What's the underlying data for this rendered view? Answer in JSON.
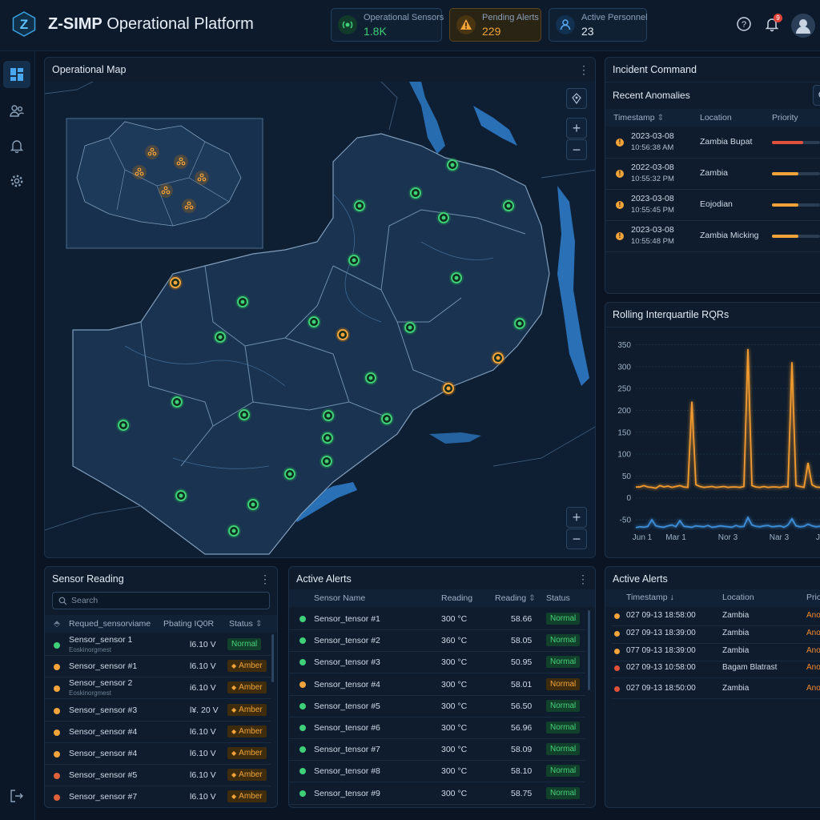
{
  "app": {
    "logo_letter": "Z",
    "title_bold": "Z-SIMP",
    "title_rest": " Operational Platform"
  },
  "header_stats": [
    {
      "label": "Operational Sensors",
      "value": "1.8K",
      "color": "#3ecf78",
      "icon": "sensor-signal-icon"
    },
    {
      "label": "Pending Alerts",
      "value": "229",
      "color": "#f2a43a",
      "icon": "warning-icon"
    },
    {
      "label": "Active Personnel",
      "value": "23",
      "color": "#5aa8f0",
      "icon": "person-icon"
    }
  ],
  "notifications": {
    "count": "9"
  },
  "map": {
    "title": "Operational Map"
  },
  "incident": {
    "title": "Incident Command",
    "subtitle": "Recent Anomalies",
    "columns": {
      "timestamp": "Timestamp",
      "location": "Location",
      "priority": "Priority"
    },
    "rows": [
      {
        "date": "2023-03-08",
        "time": "10:56:38 AM",
        "location": "Zambia Bupat",
        "priority": 0.65,
        "color": "#e0503a"
      },
      {
        "date": "2022-03-08",
        "time": "10:55:32 PM",
        "location": "Zambia",
        "priority": 0.55,
        "color": "#f2a43a"
      },
      {
        "date": "2023-03-08",
        "time": "10:55:45 PM",
        "location": "Eojodian",
        "priority": 0.55,
        "color": "#f2a43a"
      },
      {
        "date": "2023-03-08",
        "time": "10:55:48 PM",
        "location": "Zambia Micking",
        "priority": 0.55,
        "color": "#f2a43a"
      }
    ]
  },
  "chart": {
    "title": "Rolling Interquartile RQRs"
  },
  "chart_data": {
    "type": "line",
    "title": "Rolling Interquartile RQRs",
    "y_ticks": [
      350,
      300,
      250,
      200,
      150,
      100,
      50,
      0,
      -50
    ],
    "x_tick_labels": [
      "Jun 1",
      "Mar 1",
      "Nor 3",
      "Nar 3",
      "Jur"
    ],
    "ylim": [
      -70,
      360
    ],
    "grid": true,
    "series": [
      {
        "color": "#f29a2e",
        "values": [
          25,
          25,
          28,
          25,
          24,
          22,
          28,
          25,
          27,
          24,
          26,
          28,
          25,
          24,
          220,
          30,
          26,
          24,
          25,
          26,
          24,
          25,
          26,
          24,
          25,
          25,
          24,
          26,
          340,
          28,
          25,
          24,
          26,
          24,
          25,
          25,
          24,
          26,
          25,
          310,
          28,
          26,
          24,
          80,
          30,
          25,
          24,
          26,
          25
        ]
      },
      {
        "color": "#3e8ed8",
        "values": [
          -68,
          -66,
          -67,
          -65,
          -50,
          -64,
          -66,
          -67,
          -64,
          -62,
          -66,
          -52,
          -65,
          -66,
          -67,
          -64,
          -65,
          -66,
          -63,
          -67,
          -66,
          -64,
          -65,
          -66,
          -67,
          -63,
          -66,
          -65,
          -45,
          -62,
          -65,
          -66,
          -64,
          -63,
          -66,
          -65,
          -64,
          -67,
          -62,
          -48,
          -64,
          -66,
          -65,
          -60,
          -64,
          -66,
          -65,
          -62,
          -63
        ]
      }
    ]
  },
  "sensor_reading": {
    "title": "Sensor Reading",
    "search_placeholder": "Search",
    "columns": {
      "name": "Requed_sensorviame",
      "reading": "Pbating IQ0R",
      "status": "Status"
    },
    "rows": [
      {
        "name": "Sensor_sensor 1",
        "sub": "Eoskinorgmest",
        "value": "l6.10 V",
        "status": "Normal",
        "kind": "normal",
        "dot": "#3ecf78"
      },
      {
        "name": "Sensor_sensor #1",
        "sub": "",
        "value": "l6.10 V",
        "status": "Amber",
        "kind": "amber",
        "dot": "#f2a43a"
      },
      {
        "name": "Sensor_sensor 2",
        "sub": "Eoskinorgmest",
        "value": "i6.10 V",
        "status": "Amber",
        "kind": "amber",
        "dot": "#f2a43a"
      },
      {
        "name": "Sensor_sensor #3",
        "sub": "",
        "value": "l¥. 20 V",
        "status": "Amber",
        "kind": "amber",
        "dot": "#f2a43a"
      },
      {
        "name": "Sensor_sensor #4",
        "sub": "",
        "value": "l6.10 V",
        "status": "Amber",
        "kind": "amber",
        "dot": "#f2a43a"
      },
      {
        "name": "Sensor_sensor #4",
        "sub": "",
        "value": "l6.10 V",
        "status": "Amber",
        "kind": "amber",
        "dot": "#f2a43a"
      },
      {
        "name": "Sensor_sensor #5",
        "sub": "",
        "value": "l6.10 V",
        "status": "Amber",
        "kind": "amber",
        "dot": "#e0603a"
      },
      {
        "name": "Sensor_sensor #7",
        "sub": "",
        "value": "l6.10 V",
        "status": "Amber",
        "kind": "amber",
        "dot": "#e0603a"
      }
    ]
  },
  "active_alerts_mid": {
    "title": "Active Alerts",
    "columns": {
      "name": "Sensor Name",
      "reading": "Reading",
      "reading2": "Reading",
      "status": "Status"
    },
    "rows": [
      {
        "name": "Sensor_tensor #1",
        "reading": "300 °C",
        "value": "58.66",
        "status": "Normal",
        "kind": "normal",
        "dot": "#3ecf78"
      },
      {
        "name": "Sensor_tensor #2",
        "reading": "360 °C",
        "value": "58.05",
        "status": "Normal",
        "kind": "normal",
        "dot": "#3ecf78"
      },
      {
        "name": "Sensor_tensor #3",
        "reading": "300 °C",
        "value": "50.95",
        "status": "Normal",
        "kind": "normal",
        "dot": "#3ecf78"
      },
      {
        "name": "Sensor_tensor #4",
        "reading": "300 °C",
        "value": "58.01",
        "status": "Normal",
        "kind": "amber",
        "dot": "#f2a43a"
      },
      {
        "name": "Sensor_tensor #5",
        "reading": "300 °C",
        "value": "56.50",
        "status": "Normal",
        "kind": "normal",
        "dot": "#3ecf78"
      },
      {
        "name": "Sensor_tensor #6",
        "reading": "300 °C",
        "value": "56.96",
        "status": "Normal",
        "kind": "normal",
        "dot": "#3ecf78"
      },
      {
        "name": "Sensor_tensor #7",
        "reading": "300 °C",
        "value": "58.09",
        "status": "Normal",
        "kind": "normal",
        "dot": "#3ecf78"
      },
      {
        "name": "Sensor_tensor #8",
        "reading": "300 °C",
        "value": "58.10",
        "status": "Normal",
        "kind": "normal",
        "dot": "#3ecf78"
      },
      {
        "name": "Sensor_tensor #9",
        "reading": "300 °C",
        "value": "58.75",
        "status": "Normal",
        "kind": "normal",
        "dot": "#3ecf78"
      }
    ]
  },
  "active_alerts_right": {
    "title": "Active Alerts",
    "columns": {
      "timestamp": "Timestamp",
      "location": "Location",
      "priority": "Prio"
    },
    "rows": [
      {
        "time": "027 09-13 18:58:00",
        "location": "Zambia",
        "priority": "Ano",
        "dot": "#f2a43a"
      },
      {
        "time": "027 09-13 18:39:00",
        "location": "Zambia",
        "priority": "Ano",
        "dot": "#f2a43a"
      },
      {
        "time": "077 09-13 18:39:00",
        "location": "Zambia",
        "priority": "Ano",
        "dot": "#f2a43a"
      },
      {
        "time": "027 09-13 10:58:00",
        "location": "Bagam Blatrast",
        "priority": "Ano",
        "dot": "#e0503a"
      },
      {
        "time": "027 09-13 18:50:00",
        "location": "Zambia",
        "priority": "Ano",
        "dot": "#e0503a"
      }
    ]
  }
}
